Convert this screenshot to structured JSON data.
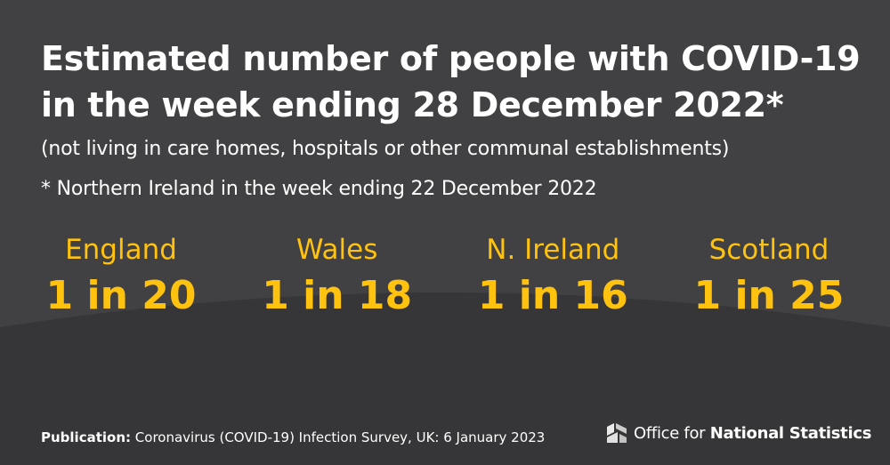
{
  "title": {
    "line1": "Estimated number of people with COVID-19",
    "line2": "in the week ending 28 December 2022*"
  },
  "subtitle": "(not living in care homes, hospitals or other communal establishments)",
  "footnote": "* Northern Ireland in the week ending 22 December 2022",
  "stats": [
    {
      "label": "England",
      "value": "1 in 20"
    },
    {
      "label": "Wales",
      "value": "1 in 18"
    },
    {
      "label": "N. Ireland",
      "value": "1 in 16"
    },
    {
      "label": "Scotland",
      "value": "1 in 25"
    }
  ],
  "footer": {
    "publication_label": "Publication:",
    "publication_text": "Coronavirus (COVID-19) Infection Survey, UK: 6 January 2023"
  },
  "logo": {
    "icon": "ons-logo-icon",
    "text_regular": "Office for ",
    "text_bold": "National Statistics"
  },
  "colors": {
    "background_top": "#414042",
    "background_bottom": "#363537",
    "accent": "#ffc20e",
    "text": "#ffffff"
  }
}
